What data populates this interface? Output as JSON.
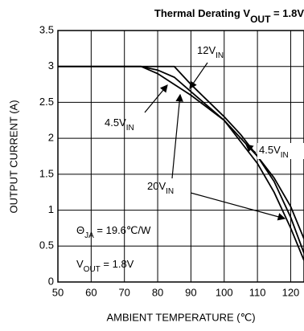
{
  "chart_data": {
    "type": "line",
    "title": {
      "text": "Thermal Derating V",
      "sub": "OUT",
      "tail": " = 1.8V"
    },
    "x_label": "AMBIENT TEMPERATURE (℃)",
    "y_label": "OUTPUT CURRENT (A)",
    "x": [
      50,
      75,
      80,
      85,
      90,
      100,
      105,
      110,
      115,
      120,
      124
    ],
    "series": [
      {
        "name": "4.5VIN",
        "color": "#000000",
        "values": [
          3,
          3,
          2.9,
          2.75,
          2.6,
          2.25,
          2.0,
          1.75,
          1.4,
          0.9,
          0.4
        ]
      },
      {
        "name": "12VIN",
        "color": "#000000",
        "values": [
          3,
          3,
          3,
          3,
          2.75,
          2.3,
          2.05,
          1.75,
          1.45,
          1.05,
          0.6
        ]
      },
      {
        "name": "20VIN",
        "color": "#000000",
        "values": [
          3,
          3,
          2.95,
          2.85,
          2.65,
          2.25,
          1.95,
          1.65,
          1.25,
          0.75,
          0.3
        ]
      }
    ],
    "annotations": [
      {
        "text": "12V",
        "sub": "IN",
        "tail": ""
      },
      {
        "text": "4.5V",
        "sub": "IN",
        "tail": ""
      },
      {
        "text": "20V",
        "sub": "IN",
        "tail": ""
      },
      {
        "text": "4.5V",
        "sub": "IN",
        "tail": ""
      },
      {
        "text": "Θ",
        "sub": "JA",
        "tail": " = 19.6℃/W"
      },
      {
        "text": "V",
        "sub": "OUT",
        "tail": " = 1.8V"
      }
    ],
    "xlim": [
      50,
      124
    ],
    "ylim": [
      0,
      3.5
    ],
    "xticks": [
      50,
      60,
      70,
      80,
      90,
      100,
      110,
      120
    ],
    "yticks": [
      0,
      0.5,
      1,
      1.5,
      2,
      2.5,
      3,
      3.5
    ],
    "grid": true
  }
}
